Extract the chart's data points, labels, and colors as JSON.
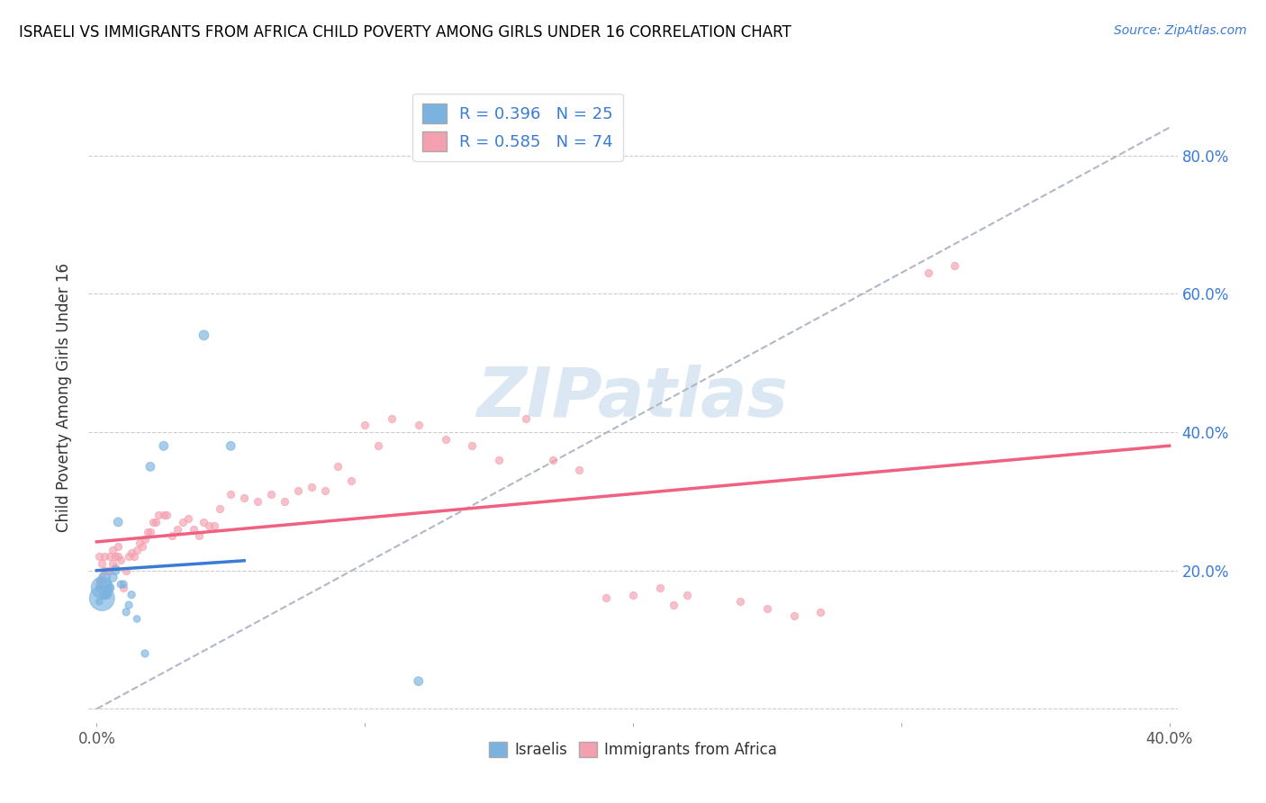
{
  "title": "ISRAELI VS IMMIGRANTS FROM AFRICA CHILD POVERTY AMONG GIRLS UNDER 16 CORRELATION CHART",
  "source": "Source: ZipAtlas.com",
  "ylabel": "Child Poverty Among Girls Under 16",
  "xlim": [
    -0.003,
    0.403
  ],
  "ylim": [
    -0.02,
    0.92
  ],
  "x_tick_positions": [
    0.0,
    0.1,
    0.2,
    0.3,
    0.4
  ],
  "x_tick_labels": [
    "0.0%",
    "",
    "",
    "",
    "40.0%"
  ],
  "y_tick_positions": [
    0.0,
    0.2,
    0.4,
    0.6,
    0.8
  ],
  "y_tick_labels": [
    "",
    "20.0%",
    "40.0%",
    "60.0%",
    "80.0%"
  ],
  "legend_r1": "R = 0.396",
  "legend_n1": "N = 25",
  "legend_r2": "R = 0.585",
  "legend_n2": "N = 74",
  "label1": "Israelis",
  "label2": "Immigrants from Africa",
  "color1": "#7ab3e0",
  "color2": "#f4a0b0",
  "trendline1_color": "#3a7bd5",
  "trendline2_color": "#f06080",
  "diagonal_color": "#b0b8c8",
  "watermark": "ZIPatlas",
  "israelis_x": [
    0.001,
    0.001,
    0.001,
    0.002,
    0.002,
    0.003,
    0.003,
    0.004,
    0.004,
    0.005,
    0.006,
    0.007,
    0.008,
    0.009,
    0.01,
    0.011,
    0.012,
    0.013,
    0.015,
    0.018,
    0.02,
    0.025,
    0.04,
    0.05,
    0.12
  ],
  "israelis_y": [
    0.155,
    0.175,
    0.185,
    0.16,
    0.175,
    0.19,
    0.165,
    0.18,
    0.165,
    0.175,
    0.19,
    0.2,
    0.27,
    0.18,
    0.18,
    0.14,
    0.15,
    0.165,
    0.13,
    0.08,
    0.35,
    0.38,
    0.54,
    0.38,
    0.04
  ],
  "israelis_size": [
    30,
    30,
    25,
    400,
    300,
    80,
    60,
    50,
    45,
    45,
    50,
    50,
    50,
    35,
    35,
    35,
    35,
    35,
    30,
    35,
    50,
    50,
    60,
    50,
    50
  ],
  "africa_x": [
    0.001,
    0.001,
    0.002,
    0.002,
    0.003,
    0.003,
    0.004,
    0.004,
    0.005,
    0.005,
    0.006,
    0.006,
    0.007,
    0.007,
    0.008,
    0.008,
    0.009,
    0.01,
    0.011,
    0.012,
    0.013,
    0.014,
    0.015,
    0.016,
    0.017,
    0.018,
    0.019,
    0.02,
    0.021,
    0.022,
    0.023,
    0.025,
    0.026,
    0.028,
    0.03,
    0.032,
    0.034,
    0.036,
    0.038,
    0.04,
    0.042,
    0.044,
    0.046,
    0.05,
    0.055,
    0.06,
    0.065,
    0.07,
    0.075,
    0.08,
    0.085,
    0.09,
    0.095,
    0.1,
    0.105,
    0.11,
    0.12,
    0.13,
    0.14,
    0.15,
    0.16,
    0.17,
    0.18,
    0.19,
    0.2,
    0.21,
    0.215,
    0.22,
    0.24,
    0.25,
    0.26,
    0.27,
    0.31,
    0.32
  ],
  "africa_y": [
    0.18,
    0.22,
    0.19,
    0.21,
    0.2,
    0.22,
    0.175,
    0.2,
    0.2,
    0.22,
    0.21,
    0.23,
    0.205,
    0.22,
    0.22,
    0.235,
    0.215,
    0.175,
    0.2,
    0.22,
    0.225,
    0.22,
    0.23,
    0.24,
    0.235,
    0.245,
    0.255,
    0.255,
    0.27,
    0.27,
    0.28,
    0.28,
    0.28,
    0.25,
    0.26,
    0.27,
    0.275,
    0.26,
    0.25,
    0.27,
    0.265,
    0.265,
    0.29,
    0.31,
    0.305,
    0.3,
    0.31,
    0.3,
    0.315,
    0.32,
    0.315,
    0.35,
    0.33,
    0.41,
    0.38,
    0.42,
    0.41,
    0.39,
    0.38,
    0.36,
    0.42,
    0.36,
    0.345,
    0.16,
    0.165,
    0.175,
    0.15,
    0.165,
    0.155,
    0.145,
    0.135,
    0.14,
    0.63,
    0.64
  ],
  "africa_size": [
    30,
    30,
    30,
    30,
    30,
    30,
    30,
    30,
    30,
    30,
    30,
    30,
    30,
    30,
    30,
    30,
    30,
    30,
    30,
    30,
    30,
    30,
    30,
    30,
    30,
    30,
    30,
    30,
    30,
    30,
    30,
    30,
    30,
    30,
    30,
    30,
    30,
    30,
    30,
    30,
    30,
    30,
    30,
    30,
    30,
    30,
    30,
    30,
    30,
    30,
    30,
    30,
    30,
    30,
    30,
    30,
    30,
    30,
    30,
    30,
    30,
    30,
    30,
    30,
    30,
    30,
    30,
    30,
    30,
    30,
    30,
    30,
    30,
    30
  ]
}
